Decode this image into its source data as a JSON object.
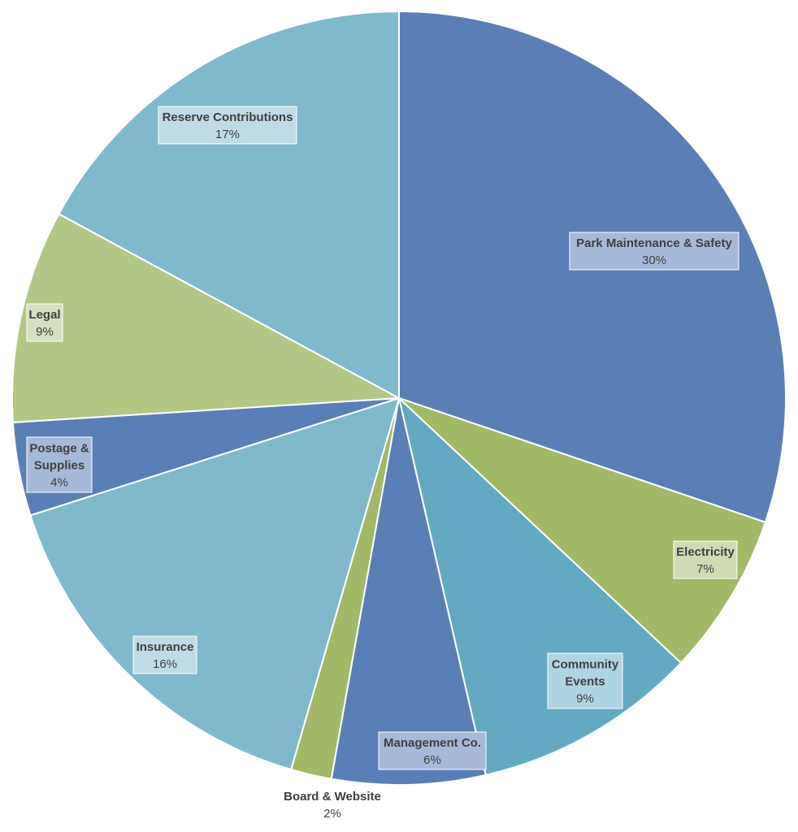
{
  "chart_data": {
    "type": "pie",
    "title": "",
    "start_angle_deg": 0,
    "direction": "clockwise",
    "slices": [
      {
        "lines": [
          "Park Maintenance & Safety"
        ],
        "pct_label": "30%",
        "value": 30.2,
        "color": "#5B7FB5"
      },
      {
        "lines": [
          "Electricity"
        ],
        "pct_label": "7%",
        "value": 6.8,
        "color": "#A2B967"
      },
      {
        "lines": [
          "Community",
          "Events"
        ],
        "pct_label": "9%",
        "value": 9.4,
        "color": "#64A9C2"
      },
      {
        "lines": [
          "Management Co."
        ],
        "pct_label": "6%",
        "value": 6.4,
        "color": "#5A7FB6"
      },
      {
        "lines": [
          "Board & Website"
        ],
        "pct_label": "2%",
        "value": 1.7,
        "color": "#A2B967"
      },
      {
        "lines": [
          "Insurance"
        ],
        "pct_label": "16%",
        "value": 15.6,
        "color": "#80B9CC"
      },
      {
        "lines": [
          "Postage &",
          "Supplies"
        ],
        "pct_label": "4%",
        "value": 3.9,
        "color": "#5A7FB6"
      },
      {
        "lines": [
          "Legal"
        ],
        "pct_label": "9%",
        "value": 8.9,
        "color": "#B3C786"
      },
      {
        "lines": [
          "Reserve Contributions"
        ],
        "pct_label": "17%",
        "value": 17.1,
        "color": "#80B9CC"
      }
    ]
  }
}
